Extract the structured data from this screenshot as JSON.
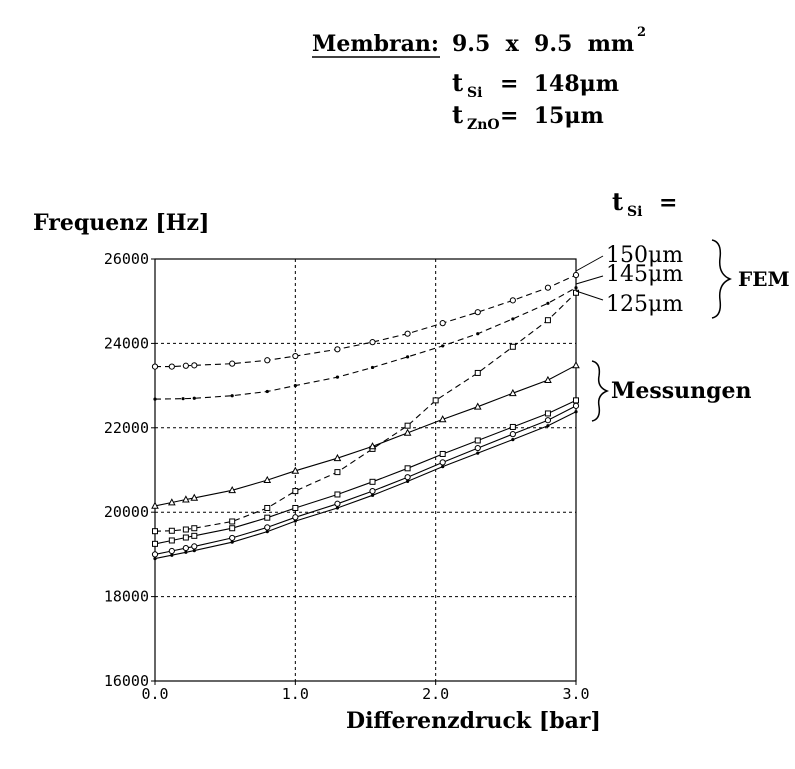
{
  "header": {
    "membran_label": "Membran:",
    "membran_value": "9.5  x  9.5  mm",
    "membran_exp": "2",
    "tsi_sym": "t",
    "tsi_sub": "Si",
    "tsi_eq": "=  148μm",
    "tzno_sym": "t",
    "tzno_sub": "ZnO",
    "tzno_eq": "=  15μm"
  },
  "legend": {
    "tsi_sym": "t",
    "tsi_sub": "Si",
    "tsi_eq": "=",
    "fem_group": "FEM",
    "mess_group": "Messungen",
    "fem_labels": [
      "150μm",
      "145μm",
      "125μm"
    ]
  },
  "chart_data": {
    "type": "line",
    "ylabel": "Frequenz [Hz]",
    "xlabel": "Differenzdruck [bar]",
    "xlim": [
      0.0,
      3.0
    ],
    "ylim": [
      16000,
      26000
    ],
    "x_ticks": [
      "0.0",
      "1.0",
      "2.0",
      "3.0"
    ],
    "y_ticks": [
      "16000",
      "18000",
      "20000",
      "22000",
      "24000",
      "26000"
    ],
    "grid": true,
    "series": [
      {
        "name": "150μm",
        "group": "FEM",
        "style": "dashed",
        "marker": "circle",
        "x": [
          0.0,
          0.12,
          0.22,
          0.28,
          0.55,
          0.8,
          1.0,
          1.3,
          1.55,
          1.8,
          2.05,
          2.3,
          2.55,
          2.8,
          3.0
        ],
        "y": [
          23450,
          23450,
          23470,
          23480,
          23520,
          23600,
          23700,
          23860,
          24030,
          24230,
          24480,
          24740,
          25020,
          25320,
          25620
        ]
      },
      {
        "name": "145μm",
        "group": "FEM",
        "style": "dashed",
        "marker": "dot",
        "x": [
          0.0,
          0.2,
          0.28,
          0.55,
          0.8,
          1.0,
          1.3,
          1.55,
          1.8,
          2.05,
          2.3,
          2.55,
          2.8,
          3.0
        ],
        "y": [
          22680,
          22690,
          22700,
          22760,
          22860,
          23000,
          23200,
          23430,
          23680,
          23940,
          24230,
          24580,
          24950,
          25320
        ]
      },
      {
        "name": "125μm",
        "group": "FEM",
        "style": "dashed",
        "marker": "square",
        "x": [
          0.0,
          0.12,
          0.22,
          0.28,
          0.55,
          0.8,
          1.0,
          1.3,
          1.55,
          1.8,
          2.0,
          2.3,
          2.55,
          2.8,
          3.0
        ],
        "y": [
          19550,
          19560,
          19590,
          19620,
          19780,
          20100,
          20500,
          20950,
          21500,
          22050,
          22650,
          23300,
          23920,
          24550,
          25200
        ]
      },
      {
        "group": "Messungen",
        "style": "solid",
        "marker": "triangle",
        "x": [
          0.0,
          0.12,
          0.22,
          0.28,
          0.55,
          0.8,
          1.0,
          1.3,
          1.55,
          1.8,
          2.05,
          2.3,
          2.55,
          2.8,
          3.0
        ],
        "y": [
          20150,
          20230,
          20300,
          20340,
          20520,
          20760,
          20980,
          21280,
          21560,
          21880,
          22200,
          22500,
          22820,
          23130,
          23480
        ]
      },
      {
        "group": "Messungen",
        "style": "solid",
        "marker": "square",
        "x": [
          0.0,
          0.12,
          0.22,
          0.28,
          0.55,
          0.8,
          1.0,
          1.3,
          1.55,
          1.8,
          2.05,
          2.3,
          2.55,
          2.8,
          3.0
        ],
        "y": [
          19250,
          19330,
          19400,
          19440,
          19620,
          19870,
          20100,
          20420,
          20720,
          21040,
          21380,
          21700,
          22020,
          22340,
          22650
        ]
      },
      {
        "group": "Messungen",
        "style": "solid",
        "marker": "circle",
        "x": [
          0.0,
          0.12,
          0.22,
          0.28,
          0.55,
          0.8,
          1.0,
          1.3,
          1.55,
          1.8,
          2.05,
          2.3,
          2.55,
          2.8,
          3.0
        ],
        "y": [
          19000,
          19080,
          19150,
          19190,
          19390,
          19640,
          19880,
          20200,
          20500,
          20830,
          21180,
          21520,
          21850,
          22180,
          22520
        ]
      },
      {
        "group": "Messungen",
        "style": "solid",
        "marker": "dot",
        "x": [
          0.0,
          0.12,
          0.22,
          0.28,
          0.55,
          0.8,
          1.0,
          1.3,
          1.55,
          1.8,
          2.05,
          2.3,
          2.55,
          2.8,
          3.0
        ],
        "y": [
          18900,
          18980,
          19050,
          19090,
          19290,
          19540,
          19790,
          20100,
          20400,
          20730,
          21080,
          21400,
          21720,
          22050,
          22380
        ]
      }
    ]
  }
}
